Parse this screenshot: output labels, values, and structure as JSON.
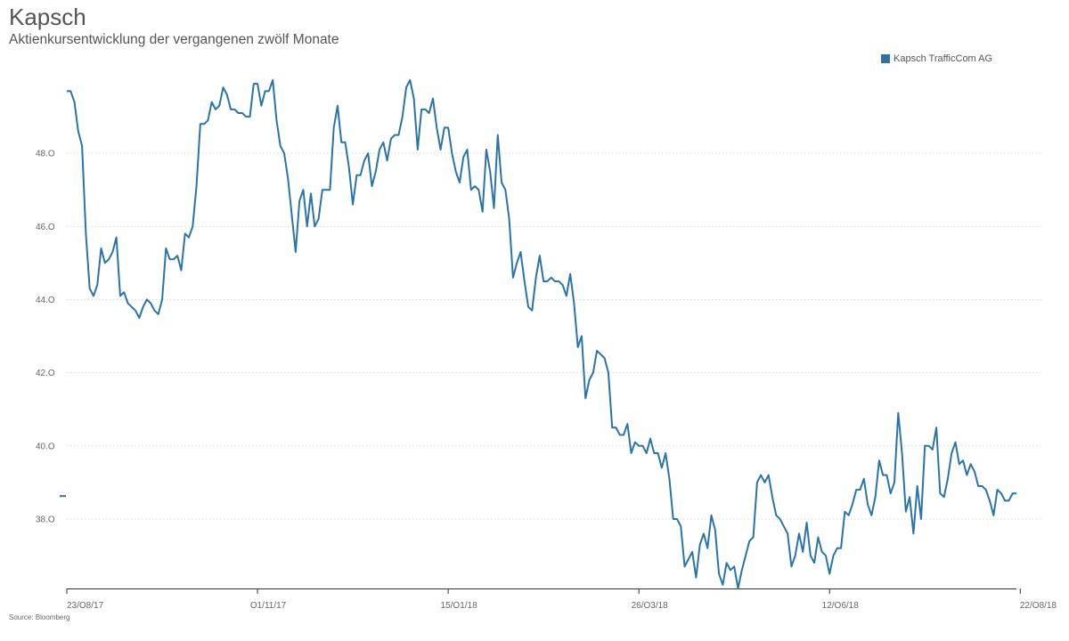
{
  "header": {
    "title": "Kapsch",
    "subtitle": "Aktienkursentwicklung der vergangenen zwölf Monate"
  },
  "footer": {
    "source": "Source: Bloomberg"
  },
  "colors": {
    "series": "#2a74a8",
    "grid": "#d9d9d9",
    "axis": "#333333",
    "text": "#555555"
  },
  "chart_data": {
    "type": "line",
    "title": "Kapsch",
    "subtitle": "Aktienkursentwicklung der vergangenen zwölf Monate",
    "xlabel": "",
    "ylabel": "",
    "ylim": [
      36.1,
      50.0
    ],
    "grid": true,
    "legend_position": "top-right",
    "ytick_values": [
      38,
      40,
      42,
      44,
      46,
      48
    ],
    "ytick_labels": [
      "38.O",
      "40.O",
      "42.O",
      "44.O",
      "46.O",
      "48.O"
    ],
    "xticks": [
      {
        "index": 0,
        "label": "23/O8/17"
      },
      {
        "index": 50,
        "label": "O1/11/17"
      },
      {
        "index": 100,
        "label": "15/O1/18"
      },
      {
        "index": 150,
        "label": "26/O3/18"
      },
      {
        "index": 200,
        "label": "12/O6/18"
      },
      {
        "index": 250,
        "label": "22/O8/18"
      }
    ],
    "series": [
      {
        "name": "Kapsch TrafficCom AG",
        "values": [
          49.7,
          49.7,
          49.4,
          48.6,
          48.2,
          45.8,
          44.3,
          44.1,
          44.4,
          45.4,
          45.0,
          45.1,
          45.3,
          45.7,
          44.1,
          44.2,
          43.9,
          43.8,
          43.7,
          43.5,
          43.8,
          44.0,
          43.9,
          43.7,
          43.6,
          44.0,
          45.4,
          45.1,
          45.1,
          45.2,
          44.8,
          45.8,
          45.7,
          46.0,
          47.1,
          48.8,
          48.8,
          48.9,
          49.4,
          49.2,
          49.3,
          49.8,
          49.6,
          49.2,
          49.2,
          49.1,
          49.1,
          49.0,
          49.0,
          49.9,
          49.9,
          49.3,
          49.7,
          49.7,
          50.0,
          48.9,
          48.2,
          48.0,
          47.3,
          46.3,
          45.3,
          46.7,
          47.0,
          46.0,
          46.9,
          46.0,
          46.2,
          47.0,
          47.0,
          47.0,
          48.7,
          49.3,
          48.3,
          48.3,
          47.6,
          46.6,
          47.4,
          47.4,
          47.8,
          48.0,
          47.1,
          47.5,
          48.1,
          48.3,
          47.8,
          48.4,
          48.5,
          48.5,
          49.0,
          49.8,
          50.0,
          49.5,
          48.1,
          49.2,
          49.2,
          49.1,
          49.5,
          48.7,
          48.1,
          48.7,
          48.7,
          48.0,
          47.5,
          47.2,
          47.9,
          48.1,
          47.0,
          47.1,
          47.0,
          46.4,
          48.1,
          47.5,
          46.5,
          48.5,
          47.2,
          47.0,
          46.2,
          44.6,
          45.0,
          45.3,
          44.5,
          43.8,
          43.7,
          44.6,
          45.2,
          44.5,
          44.5,
          44.6,
          44.5,
          44.5,
          44.4,
          44.1,
          44.7,
          43.9,
          42.7,
          43.0,
          41.3,
          41.8,
          42.0,
          42.6,
          42.5,
          42.4,
          42.0,
          40.5,
          40.5,
          40.3,
          40.3,
          40.6,
          39.8,
          40.1,
          40.0,
          40.0,
          39.8,
          40.2,
          39.8,
          39.8,
          39.4,
          39.8,
          39.1,
          38.0,
          38.0,
          37.8,
          36.7,
          36.9,
          37.1,
          36.4,
          37.3,
          37.6,
          37.2,
          38.1,
          37.7,
          36.5,
          36.2,
          36.8,
          36.6,
          36.7,
          36.1,
          36.6,
          37.0,
          37.4,
          37.5,
          39.0,
          39.2,
          39.0,
          39.2,
          38.6,
          38.1,
          38.0,
          37.8,
          37.6,
          36.7,
          37.0,
          37.6,
          37.1,
          37.9,
          37.0,
          36.8,
          37.5,
          37.1,
          37.0,
          36.5,
          37.0,
          37.2,
          37.2,
          38.2,
          38.1,
          38.4,
          38.8,
          38.8,
          39.1,
          38.4,
          38.1,
          38.6,
          39.6,
          39.2,
          39.2,
          38.7,
          39.0,
          40.9,
          39.8,
          38.2,
          38.6,
          37.6,
          38.9,
          38.0,
          40.0,
          40.0,
          39.9,
          40.5,
          38.7,
          38.6,
          39.1,
          39.8,
          40.1,
          39.5,
          39.6,
          39.2,
          39.5,
          39.3,
          38.9,
          38.9,
          38.8,
          38.5,
          38.1,
          38.8,
          38.7,
          38.5,
          38.5,
          38.7,
          38.7
        ]
      }
    ]
  }
}
